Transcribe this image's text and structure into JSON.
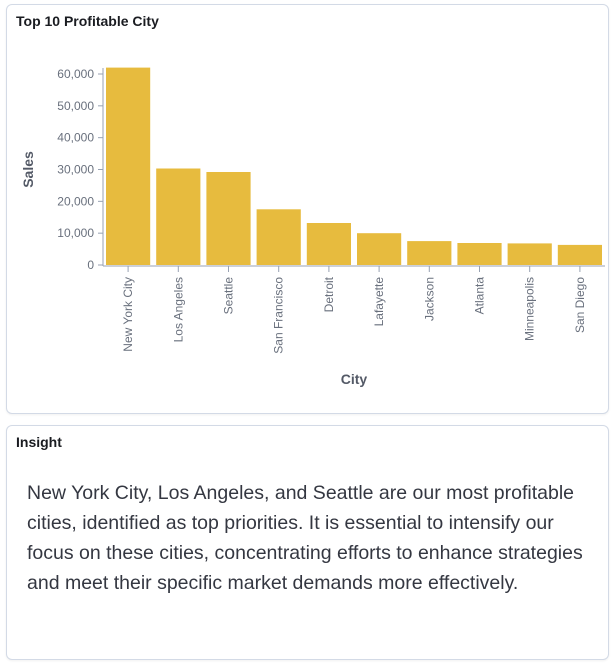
{
  "chart_panel": {
    "title": "Top 10 Profitable City"
  },
  "chart_data": {
    "type": "bar",
    "title": "Top 10 Profitable City",
    "xlabel": "City",
    "ylabel": "Sales",
    "categories": [
      "New York City",
      "Los Angeles",
      "Seattle",
      "San Francisco",
      "Detroit",
      "Lafayette",
      "Jackson",
      "Atlanta",
      "Minneapolis",
      "San Diego"
    ],
    "values": [
      62000,
      30300,
      29200,
      17500,
      13200,
      10000,
      7500,
      6900,
      6800,
      6300
    ],
    "ylim": [
      0,
      60000
    ],
    "yticks": [
      0,
      10000,
      20000,
      30000,
      40000,
      50000,
      60000
    ],
    "ytick_labels": [
      "0",
      "10,000",
      "20,000",
      "30,000",
      "40,000",
      "50,000",
      "60,000"
    ],
    "bar_color": "#e7bb3e",
    "grid": false,
    "legend": "none"
  },
  "insight_panel": {
    "title": "Insight",
    "text": "New York City, Los Angeles, and Seattle are our most profitable cities, identified as top priorities. It is essential to intensify our focus on these cities, concentrating efforts to enhance strategies and meet their specific market demands more effectively."
  }
}
